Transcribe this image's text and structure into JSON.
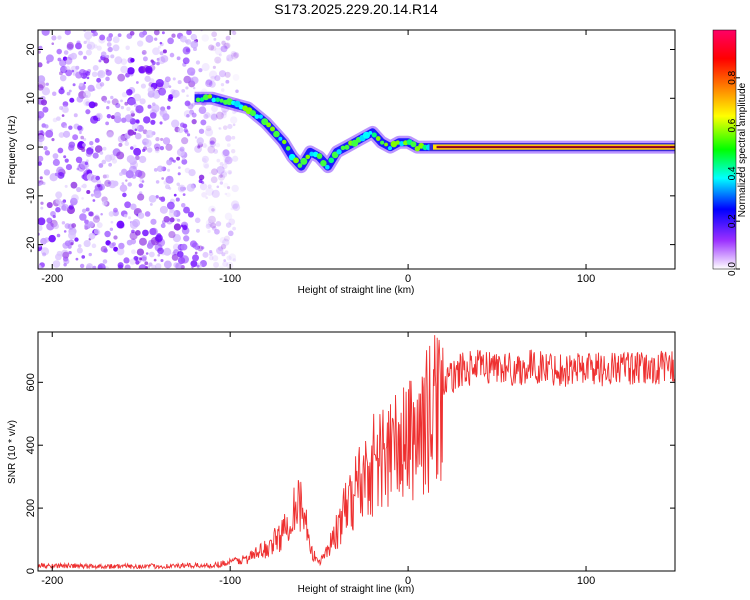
{
  "title": "S173.2025.229.20.14.R14",
  "chart_data": [
    {
      "type": "heatmap",
      "title": "S173.2025.229.20.14.R14",
      "xlabel": "Height of straight line (km)",
      "ylabel": "Frequency (Hz)",
      "xlim": [
        -208,
        150
      ],
      "ylim": [
        -25,
        24
      ],
      "xticks": [
        -200,
        -100,
        0,
        100
      ],
      "yticks": [
        20,
        10,
        0,
        -10,
        -20
      ],
      "colorbar": {
        "label": "Normalized spectral amplitude",
        "range": [
          0,
          1
        ],
        "ticks": [
          0.0,
          0.2,
          0.4,
          0.6,
          0.8
        ],
        "colors": [
          "#ffffff",
          "#9b30ff",
          "#0000ff",
          "#00ffff",
          "#00ff00",
          "#ffff00",
          "#ff8000",
          "#ff0000",
          "#ff0066"
        ]
      },
      "ridge": {
        "height_km": [
          -120,
          -110,
          -100,
          -90,
          -80,
          -75,
          -70,
          -65,
          -60,
          -55,
          -50,
          -45,
          -40,
          -35,
          -30,
          -25,
          -20,
          -15,
          -10,
          -5,
          0,
          5,
          10,
          15,
          150
        ],
        "frequency_hz": [
          10,
          10,
          9,
          8,
          5,
          3,
          1,
          -2,
          -4,
          -1,
          -2,
          -4,
          -1,
          0,
          1,
          2,
          3,
          1,
          0,
          1,
          1,
          0,
          0,
          0,
          0
        ]
      },
      "carrier_frequency_hz": 0
    },
    {
      "type": "line",
      "xlabel": "Height of straight line (km)",
      "ylabel": "SNR (10 * v/v)",
      "xlim": [
        -208,
        150
      ],
      "ylim": [
        0,
        760
      ],
      "xticks": [
        -200,
        -100,
        0,
        100
      ],
      "yticks": [
        0,
        200,
        400,
        600
      ],
      "color": "#ee3030",
      "series": [
        {
          "name": "SNR",
          "x": [
            -208,
            -180,
            -140,
            -110,
            -100,
            -90,
            -80,
            -70,
            -65,
            -62,
            -58,
            -55,
            -50,
            -45,
            -40,
            -35,
            -30,
            -25,
            -20,
            -15,
            -10,
            -5,
            0,
            5,
            10,
            15,
            20,
            25,
            30,
            40,
            50,
            60,
            70,
            80,
            90,
            100,
            110,
            120,
            130,
            140,
            150
          ],
          "y": [
            18,
            15,
            15,
            18,
            28,
            40,
            70,
            120,
            200,
            230,
            170,
            60,
            30,
            70,
            130,
            190,
            260,
            300,
            340,
            360,
            380,
            390,
            410,
            440,
            470,
            520,
            580,
            620,
            640,
            650,
            650,
            640,
            650,
            645,
            640,
            650,
            640,
            650,
            640,
            645,
            650
          ]
        }
      ]
    }
  ]
}
